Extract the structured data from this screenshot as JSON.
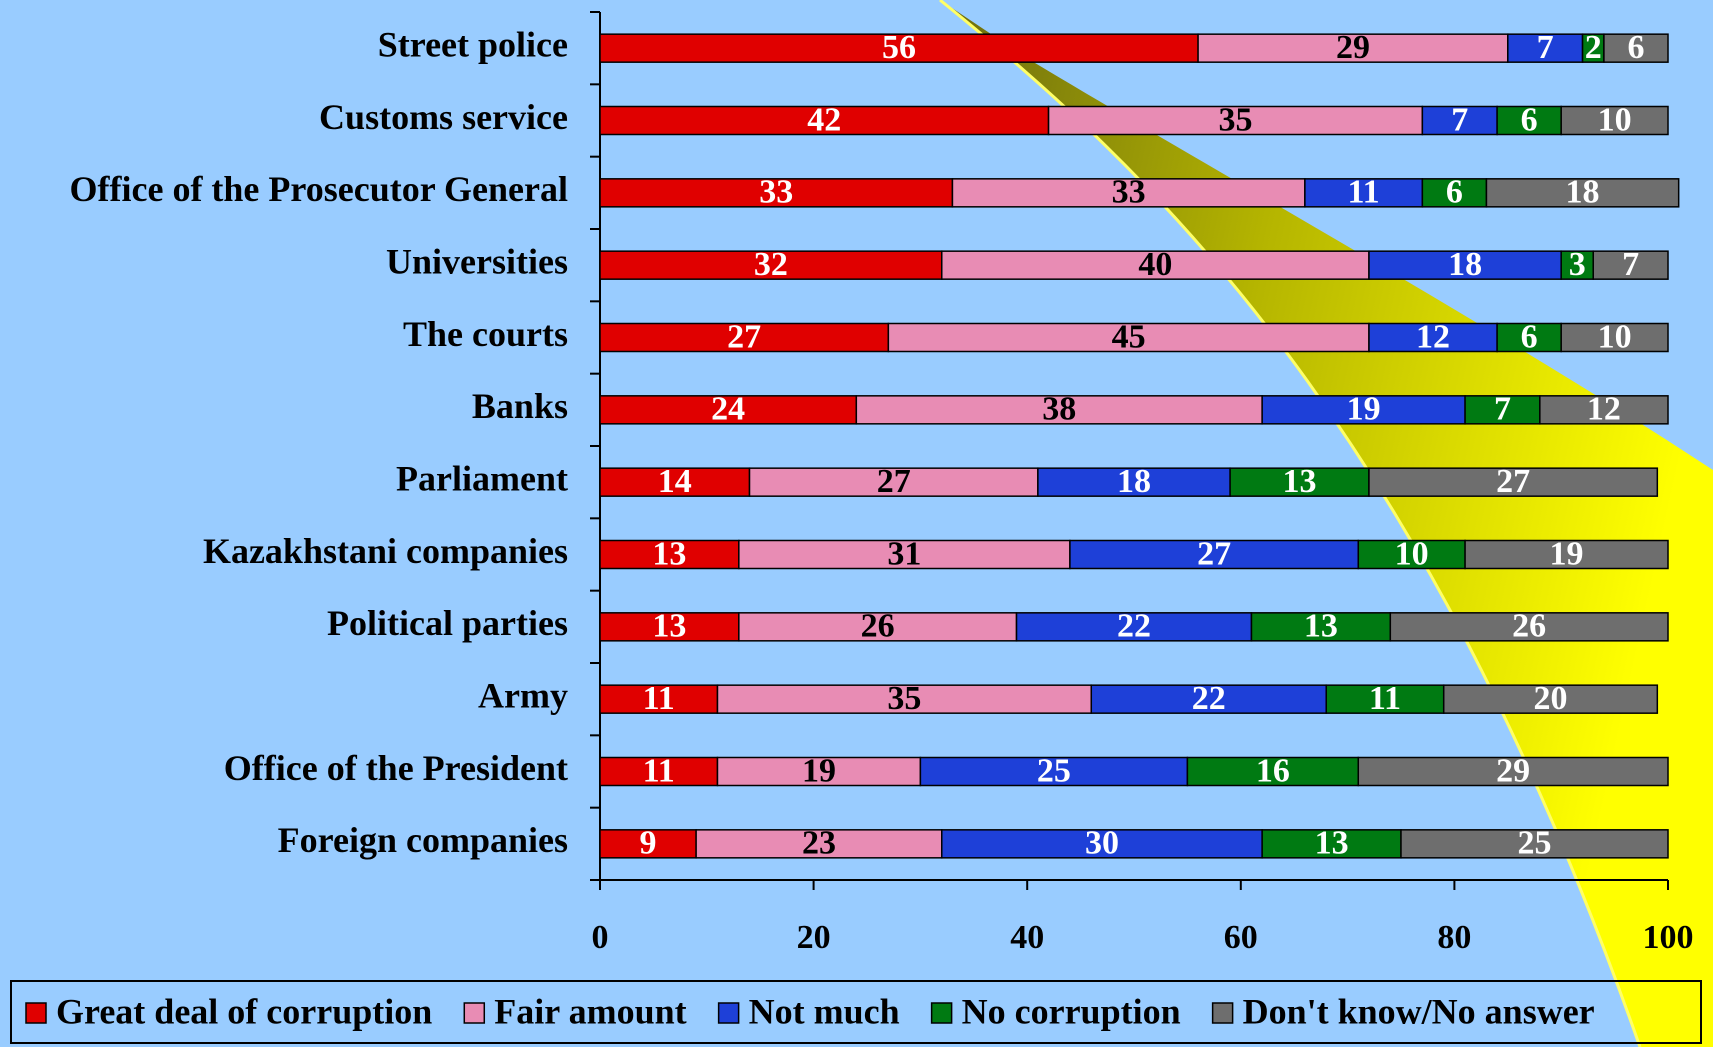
{
  "chart_data": {
    "type": "stacked_bar_horizontal",
    "categories": [
      "Street police",
      "Customs service",
      "Office of the Prosecutor General",
      "Universities",
      "The courts",
      "Banks",
      "Parliament",
      "Kazakhstani companies",
      "Political parties",
      "Army",
      "Office of the President",
      "Foreign companies"
    ],
    "series": [
      {
        "name": "Great deal of corruption",
        "color": "#e00000",
        "label_color": "#ffffff",
        "values": [
          56,
          42,
          33,
          32,
          27,
          24,
          14,
          13,
          13,
          11,
          11,
          9
        ]
      },
      {
        "name": "Fair amount",
        "color": "#e88cb4",
        "label_color": "#000000",
        "values": [
          29,
          35,
          33,
          40,
          45,
          38,
          27,
          31,
          26,
          35,
          19,
          23
        ]
      },
      {
        "name": "Not much",
        "color": "#1e40d8",
        "label_color": "#ffffff",
        "values": [
          7,
          7,
          11,
          18,
          12,
          19,
          18,
          27,
          22,
          22,
          25,
          30
        ]
      },
      {
        "name": "No corruption",
        "color": "#007a12",
        "label_color": "#ffffff",
        "values": [
          2,
          6,
          6,
          3,
          6,
          7,
          13,
          10,
          13,
          11,
          16,
          13
        ]
      },
      {
        "name": "Don't know/No answer",
        "color": "#6e6e6e",
        "label_color": "#ffffff",
        "values": [
          6,
          10,
          18,
          7,
          10,
          12,
          27,
          19,
          26,
          20,
          29,
          25
        ]
      }
    ],
    "xlim": [
      0,
      100
    ],
    "xticks": [
      0,
      20,
      40,
      60,
      80,
      100
    ]
  }
}
